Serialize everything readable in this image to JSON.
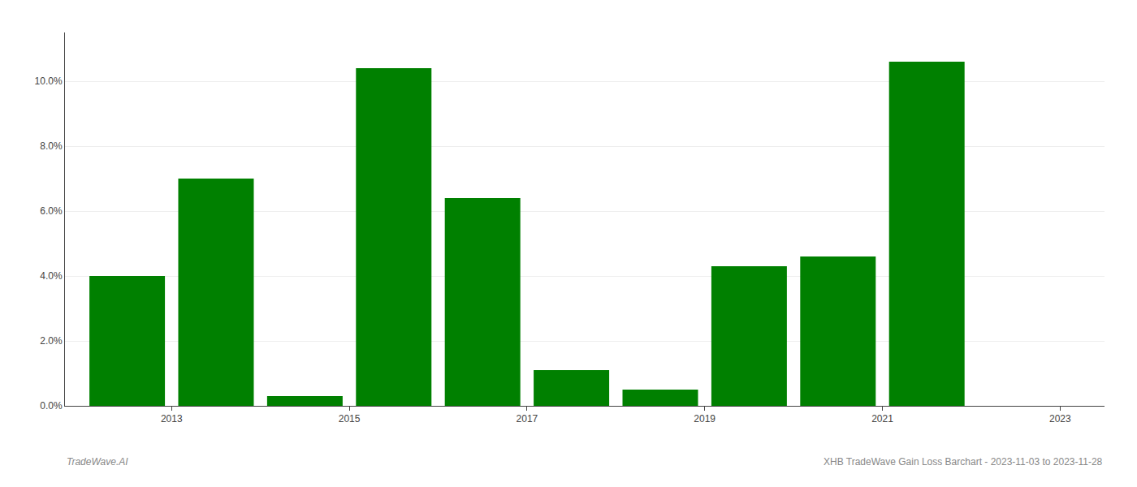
{
  "chart_data": {
    "type": "bar",
    "x": [
      2013,
      2014,
      2015,
      2016,
      2017,
      2018,
      2019,
      2020,
      2021,
      2022,
      2023
    ],
    "values": [
      0.04,
      0.07,
      0.003,
      0.104,
      0.064,
      0.011,
      0.005,
      0.043,
      0.046,
      0.106,
      0.0
    ],
    "color": "#008000",
    "xlim": [
      2012.3,
      2024.0
    ],
    "xticks": [
      {
        "value": 2013.5,
        "label": "2013"
      },
      {
        "value": 2015.5,
        "label": "2015"
      },
      {
        "value": 2017.5,
        "label": "2017"
      },
      {
        "value": 2019.5,
        "label": "2019"
      },
      {
        "value": 2021.5,
        "label": "2021"
      },
      {
        "value": 2023.5,
        "label": "2023"
      }
    ],
    "ylim": [
      0,
      0.115
    ],
    "yticks": [
      {
        "value": 0.0,
        "label": "0.0%"
      },
      {
        "value": 0.02,
        "label": "2.0%"
      },
      {
        "value": 0.04,
        "label": "4.0%"
      },
      {
        "value": 0.06,
        "label": "6.0%"
      },
      {
        "value": 0.08,
        "label": "8.0%"
      },
      {
        "value": 0.1,
        "label": "10.0%"
      }
    ],
    "grid": true,
    "annotations": [
      "TradeWave.AI",
      "XHB TradeWave Gain Loss Barchart - 2023-11-03 to 2023-11-28"
    ]
  }
}
